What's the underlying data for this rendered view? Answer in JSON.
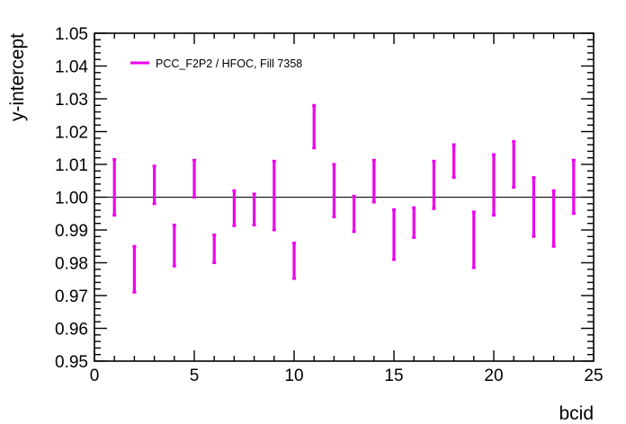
{
  "chart_data": {
    "type": "scatter",
    "style": "error-bars",
    "xlabel": "bcid",
    "ylabel": "y-intercept",
    "xlim": [
      0,
      25
    ],
    "ylim": [
      0.95,
      1.05
    ],
    "x_ticks": [
      0,
      5,
      10,
      15,
      20,
      25
    ],
    "x_tick_labels": [
      "0",
      "5",
      "10",
      "15",
      "20",
      "25"
    ],
    "y_ticks": [
      0.95,
      0.96,
      0.97,
      0.98,
      0.99,
      1.0,
      1.01,
      1.02,
      1.03,
      1.04,
      1.05
    ],
    "y_tick_labels": [
      "0.95",
      "0.96",
      "0.97",
      "0.98",
      "0.99",
      "1.00",
      "1.01",
      "1.02",
      "1.03",
      "1.04",
      "1.05"
    ],
    "reference_line": 1.0,
    "legend_position": "top-left",
    "grid": false,
    "series": [
      {
        "name": "PCC_F2P2 / HFOC,  Fill 7358",
        "color": "#ee00ee",
        "points": [
          {
            "x": 1,
            "low": 0.9945,
            "high": 1.0115
          },
          {
            "x": 2,
            "low": 0.971,
            "high": 0.985
          },
          {
            "x": 3,
            "low": 0.998,
            "high": 1.0095
          },
          {
            "x": 4,
            "low": 0.979,
            "high": 0.9915
          },
          {
            "x": 5,
            "low": 1.0,
            "high": 1.0113
          },
          {
            "x": 6,
            "low": 0.98,
            "high": 0.9885
          },
          {
            "x": 7,
            "low": 0.9913,
            "high": 1.002
          },
          {
            "x": 8,
            "low": 0.9915,
            "high": 1.001
          },
          {
            "x": 9,
            "low": 0.99,
            "high": 1.011
          },
          {
            "x": 10,
            "low": 0.9752,
            "high": 0.986
          },
          {
            "x": 11,
            "low": 1.015,
            "high": 1.028
          },
          {
            "x": 12,
            "low": 0.994,
            "high": 1.01
          },
          {
            "x": 13,
            "low": 0.9895,
            "high": 1.0003
          },
          {
            "x": 14,
            "low": 0.9985,
            "high": 1.0113
          },
          {
            "x": 15,
            "low": 0.981,
            "high": 0.9962
          },
          {
            "x": 16,
            "low": 0.9877,
            "high": 0.9968
          },
          {
            "x": 17,
            "low": 0.9965,
            "high": 1.011
          },
          {
            "x": 18,
            "low": 1.006,
            "high": 1.016
          },
          {
            "x": 19,
            "low": 0.9785,
            "high": 0.9955
          },
          {
            "x": 20,
            "low": 0.9945,
            "high": 1.013
          },
          {
            "x": 21,
            "low": 1.003,
            "high": 1.017
          },
          {
            "x": 22,
            "low": 0.988,
            "high": 1.006
          },
          {
            "x": 23,
            "low": 0.985,
            "high": 1.002
          },
          {
            "x": 24,
            "low": 0.995,
            "high": 1.0113
          }
        ]
      }
    ]
  }
}
